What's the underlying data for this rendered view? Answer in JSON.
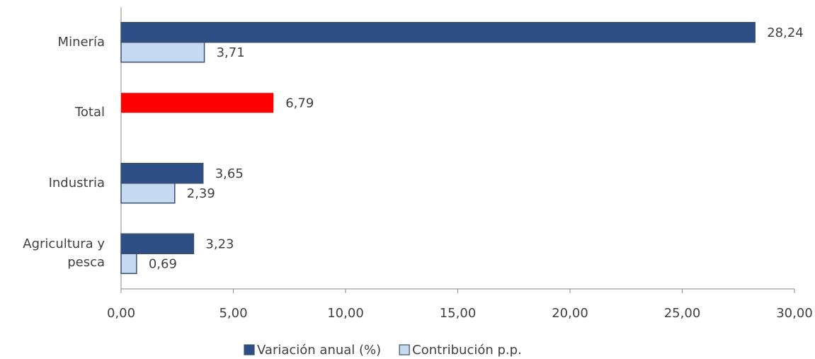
{
  "chart_data": {
    "type": "bar",
    "orientation": "horizontal",
    "categories": [
      "Minería",
      "Total",
      "Industria",
      "Agricultura y pesca"
    ],
    "series": [
      {
        "name": "Variación anual (%)",
        "color": "#2e4f86",
        "point_colors": [
          "#2e4f86",
          "#ff0000",
          "#2e4f86",
          "#2e4f86"
        ],
        "values": [
          28.24,
          6.79,
          3.65,
          3.23
        ],
        "value_labels": [
          "28,24",
          "6,79",
          "3,65",
          "3,23"
        ]
      },
      {
        "name": "Contribución p.p.",
        "color": "#c5d9f1",
        "values": [
          3.71,
          null,
          2.39,
          0.69
        ],
        "value_labels": [
          "3,71",
          null,
          "2,39",
          "0,69"
        ]
      }
    ],
    "xlim": [
      0,
      30
    ],
    "xticks": [
      {
        "value": 0,
        "label": "0,00"
      },
      {
        "value": 5,
        "label": "5,00"
      },
      {
        "value": 10,
        "label": "10,00"
      },
      {
        "value": 15,
        "label": "15,00"
      },
      {
        "value": 20,
        "label": "20,00"
      },
      {
        "value": 25,
        "label": "25,00"
      },
      {
        "value": 30,
        "label": "30,00"
      }
    ],
    "legend": "bottom"
  }
}
